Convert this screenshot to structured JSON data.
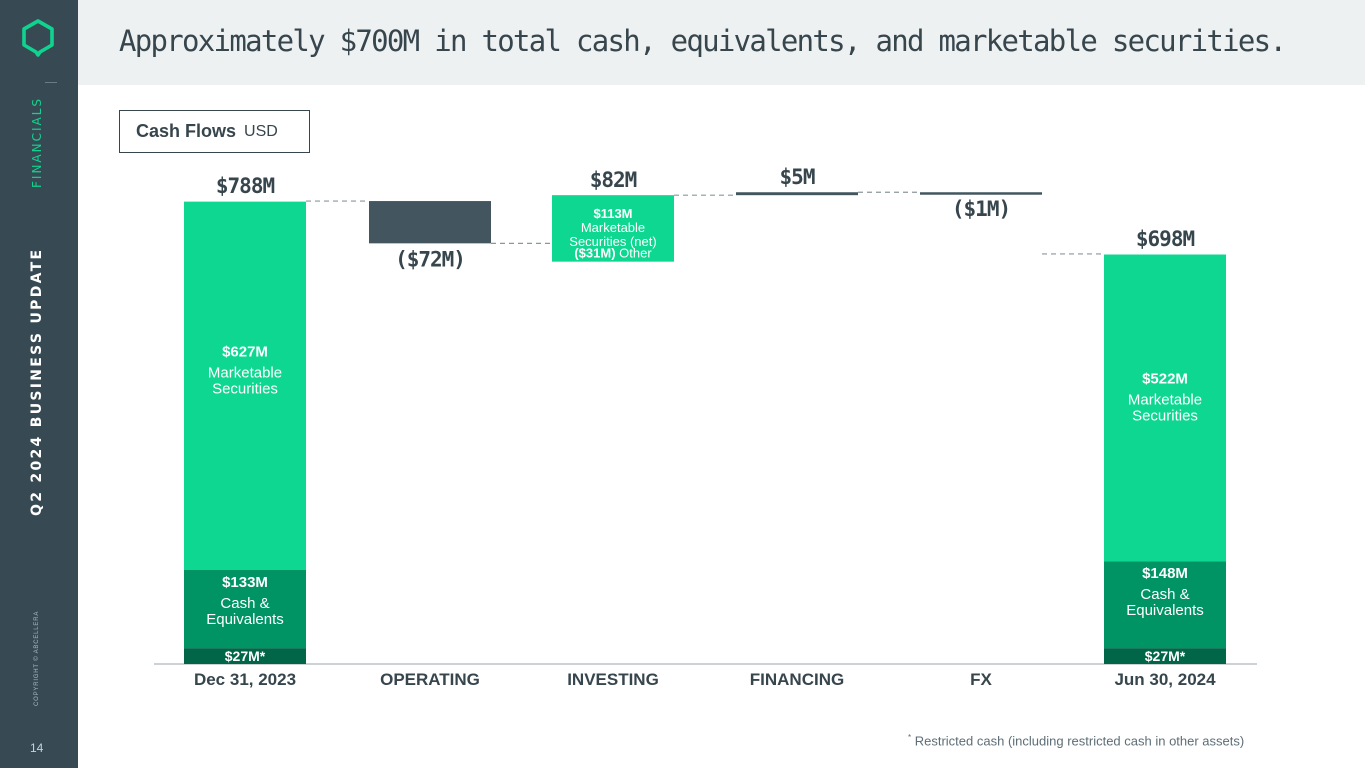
{
  "sidebar": {
    "section_label": "FINANCIALS",
    "deck_title": "Q2 2024 BUSINESS UPDATE",
    "copyright": "COPYRIGHT © ABCELLERA",
    "page_number": "14",
    "logo_icon": "abcellera-hexagon-logo-icon"
  },
  "header": {
    "headline": "Approximately $700M in total cash, equivalents, and marketable securities."
  },
  "chart_title": {
    "main": "Cash Flows",
    "unit": "USD"
  },
  "footnote": {
    "marker": "*",
    "text": " Restricted cash (including restricted cash in other assets)"
  },
  "colors": {
    "sidebar_bg": "#374a54",
    "accent_green": "#0fd48f",
    "marketable_green": "#0dd791",
    "cash_green": "#009464",
    "restricted_green": "#006647",
    "negative_slate": "#435660",
    "text_dark": "#37454d"
  },
  "chart_data": {
    "type": "bar",
    "subtype": "waterfall",
    "unit": "USD (M)",
    "categories": [
      "Dec 31, 2023",
      "OPERATING",
      "INVESTING",
      "FINANCING",
      "FX",
      "Jun 30, 2024"
    ],
    "bars": [
      {
        "category": "Dec 31, 2023",
        "kind": "total",
        "total": 788,
        "total_label": "$788M",
        "segments": [
          {
            "value": 27,
            "label": "$27M*",
            "desc": "",
            "color": "#006647"
          },
          {
            "value": 133,
            "label": "$133M",
            "desc": "Cash & Equivalents",
            "color": "#009464"
          },
          {
            "value": 627,
            "label": "$627M",
            "desc": "Marketable Securities",
            "color": "#0dd791"
          }
        ]
      },
      {
        "category": "OPERATING",
        "kind": "delta",
        "value": -72,
        "label": "($72M)",
        "color": "#435660"
      },
      {
        "category": "INVESTING",
        "kind": "delta",
        "value": 82,
        "label": "$82M",
        "segments": [
          {
            "value": -31,
            "label": "($31M)",
            "desc": "Other",
            "color": "#435660"
          },
          {
            "value": 113,
            "label": "$113M",
            "desc": "Marketable Securities (net)",
            "color": "#0dd791"
          }
        ]
      },
      {
        "category": "FINANCING",
        "kind": "delta",
        "value": 5,
        "label": "$5M",
        "color": "#435660"
      },
      {
        "category": "FX",
        "kind": "delta",
        "value": -1,
        "label": "($1M)",
        "color": "#435660"
      },
      {
        "category": "Jun 30, 2024",
        "kind": "total",
        "total": 698,
        "total_label": "$698M",
        "segments": [
          {
            "value": 27,
            "label": "$27M*",
            "desc": "",
            "color": "#006647"
          },
          {
            "value": 148,
            "label": "$148M",
            "desc": "Cash & Equivalents",
            "color": "#009464"
          },
          {
            "value": 522,
            "label": "$522M",
            "desc": "Marketable Securities",
            "color": "#0dd791"
          }
        ]
      }
    ],
    "connectors": "dashed",
    "grid": false,
    "legend": "none"
  }
}
